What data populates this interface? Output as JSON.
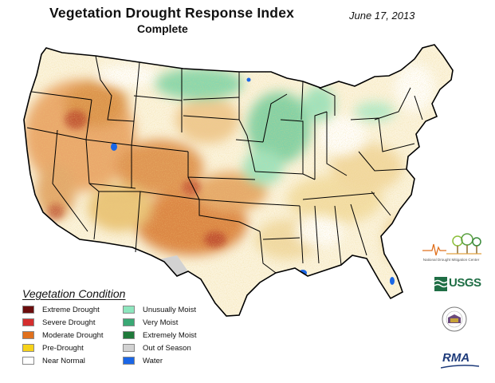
{
  "header": {
    "title": "Vegetation Drought Response Index",
    "subtitle": "Complete",
    "date": "June 17, 2013"
  },
  "legend": {
    "title": "Vegetation Condition",
    "col1": [
      {
        "label": "Extreme Drought",
        "color": "#6b0d0d"
      },
      {
        "label": "Severe Drought",
        "color": "#d42e2e"
      },
      {
        "label": "Moderate Drought",
        "color": "#e0701d"
      },
      {
        "label": "Pre-Drought",
        "color": "#f6d21a"
      },
      {
        "label": "Near Normal",
        "color": "#ffffff"
      }
    ],
    "col2": [
      {
        "label": "Unusually Moist",
        "color": "#8ee6be"
      },
      {
        "label": "Very Moist",
        "color": "#3aa874"
      },
      {
        "label": "Extremely Moist",
        "color": "#1f7a3a"
      },
      {
        "label": "Out of Season",
        "color": "#d2d2d2"
      },
      {
        "label": "Water",
        "color": "#1a66e6"
      }
    ]
  },
  "logos": {
    "ndmc": "National Drought Mitigation Center",
    "usgs": "USGS",
    "rma": "RMA"
  }
}
